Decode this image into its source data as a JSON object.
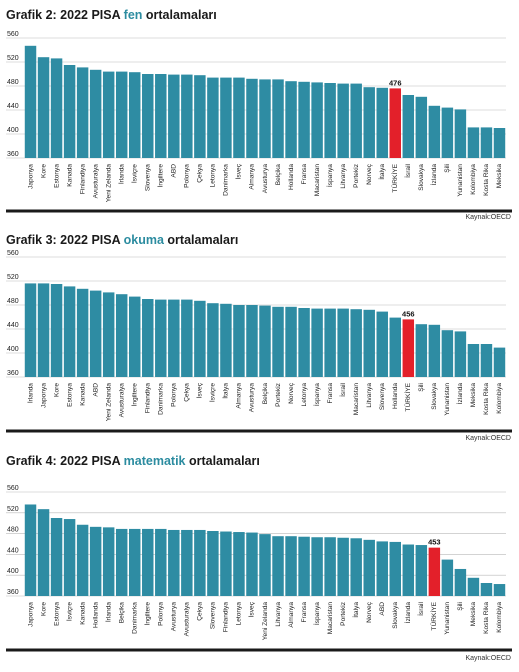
{
  "colors": {
    "bar": "#2e8ca3",
    "highlight": "#e3202a",
    "grid": "#b9b9b9",
    "baseline": "#1a1a1a",
    "title_highlight": "#2c8ca0"
  },
  "chart_data": [
    {
      "type": "bar",
      "title_prefix": "Grafik 2: 2022 PISA ",
      "title_highlight": "fen",
      "title_suffix": " ortalamaları",
      "source": "Kaynak:OECD",
      "ylim": [
        360,
        560
      ],
      "yticks": [
        360,
        400,
        440,
        480,
        520,
        560
      ],
      "grid": true,
      "highlight_category": "TÜRKİYE",
      "highlight_label": "476",
      "categories": [
        "Japonya",
        "Kore",
        "Estonya",
        "Kanada",
        "Finlandiya",
        "Avusturalya",
        "Yeni Zelanda",
        "İrlanda",
        "İsviçre",
        "Slovenya",
        "İngiltere",
        "ABD",
        "Polonya",
        "Çekya",
        "Letonya",
        "Danimarka",
        "İsveç",
        "Almanya",
        "Avusturya",
        "Belçika",
        "Hollanda",
        "Fransa",
        "Macaristan",
        "İspanya",
        "Litvanya",
        "Portekiz",
        "Norveç",
        "İtalya",
        "TÜRKİYE",
        "İsrail",
        "Slovakya",
        "İzlanda",
        "Şili",
        "Yunanistan",
        "Kolombiya",
        "Kosta Rika",
        "Meksika"
      ],
      "values": [
        547,
        528,
        526,
        515,
        511,
        507,
        504,
        504,
        503,
        500,
        500,
        499,
        499,
        498,
        494,
        494,
        494,
        492,
        491,
        491,
        488,
        487,
        486,
        485,
        484,
        484,
        478,
        477,
        476,
        465,
        462,
        447,
        444,
        441,
        411,
        411,
        410
      ]
    },
    {
      "type": "bar",
      "title_prefix": "Grafik 3: 2022 PISA ",
      "title_highlight": "okuma",
      "title_suffix": " ortalamaları",
      "source": "Kaynak:OECD",
      "ylim": [
        360,
        560
      ],
      "yticks": [
        360,
        400,
        440,
        480,
        520,
        560
      ],
      "grid": true,
      "highlight_category": "TÜRKİYE",
      "highlight_label": "456",
      "categories": [
        "İrlanda",
        "Japonya",
        "Kore",
        "Estonya",
        "Kanada",
        "ABD",
        "Yeni Zelanda",
        "Avusturalya",
        "İngiltere",
        "Finlandiya",
        "Danimarka",
        "Polonya",
        "Çekya",
        "İsveç",
        "İsviçre",
        "İtalya",
        "Almanya",
        "Avusturya",
        "Belçika",
        "Portekiz",
        "Norveç",
        "Letonya",
        "İspanya",
        "Fransa",
        "İsrail",
        "Macaristan",
        "Litvanya",
        "Slovenya",
        "Hollanda",
        "TÜRKİYE",
        "Şili",
        "Slovakya",
        "Yunanistan",
        "İzlanda",
        "Meksika",
        "Kosta Rika",
        "Kolombiya"
      ],
      "values": [
        516,
        516,
        515,
        511,
        507,
        504,
        501,
        498,
        494,
        490,
        489,
        489,
        489,
        487,
        483,
        482,
        480,
        480,
        479,
        477,
        477,
        475,
        474,
        474,
        474,
        473,
        472,
        469,
        459,
        456,
        448,
        447,
        438,
        436,
        415,
        415,
        409
      ]
    },
    {
      "type": "bar",
      "title_prefix": "Grafik 4: 2022 PISA ",
      "title_highlight": "matematik",
      "title_suffix": " ortalamaları",
      "source": "Kaynak:OECD",
      "ylim": [
        360,
        560
      ],
      "yticks": [
        360,
        400,
        440,
        480,
        520,
        560
      ],
      "grid": true,
      "highlight_category": "TÜRKİYE",
      "highlight_label": "453",
      "categories": [
        "Japonya",
        "Kore",
        "Estonya",
        "İsviçre",
        "Kanada",
        "Hollanda",
        "İrlanda",
        "Belçika",
        "Danimarka",
        "İngiltere",
        "Polonya",
        "Avusturya",
        "Avusturalya",
        "Çekya",
        "Slovenya",
        "Finlandiya",
        "Letonya",
        "İsveç",
        "Yeni Zelanda",
        "Litvanya",
        "Almanya",
        "Fransa",
        "İspanya",
        "Macaristan",
        "Portekiz",
        "İtalya",
        "Norveç",
        "ABD",
        "Slovakya",
        "İzlanda",
        "İsrail",
        "TÜRKİYE",
        "Yunanistan",
        "Şili",
        "Meksika",
        "Kosta Rika",
        "Kolombiya"
      ],
      "values": [
        536,
        527,
        510,
        508,
        497,
        493,
        492,
        489,
        489,
        489,
        489,
        487,
        487,
        487,
        485,
        484,
        483,
        482,
        479,
        475,
        475,
        474,
        473,
        473,
        472,
        471,
        468,
        465,
        464,
        459,
        458,
        453,
        430,
        412,
        395,
        385,
        383
      ]
    }
  ]
}
